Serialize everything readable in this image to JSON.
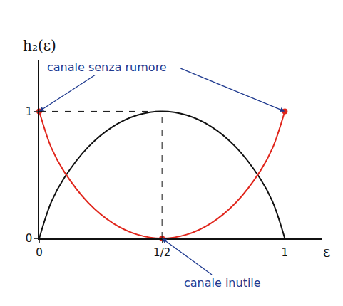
{
  "chart_data": {
    "type": "line",
    "y_label": "h₂(ε)",
    "x_label": "ε",
    "x": [
      0,
      0.05,
      0.1,
      0.2,
      0.3,
      0.4,
      0.5,
      0.6,
      0.7,
      0.8,
      0.9,
      0.95,
      1
    ],
    "series": [
      {
        "color": "#111111",
        "values": [
          0,
          0.29,
          0.47,
          0.72,
          0.88,
          0.97,
          1,
          0.97,
          0.88,
          0.72,
          0.47,
          0.29,
          0
        ]
      },
      {
        "color": "#e0261c",
        "values": [
          1,
          0.71,
          0.53,
          0.28,
          0.12,
          0.03,
          0,
          0.03,
          0.12,
          0.28,
          0.53,
          0.71,
          1
        ]
      }
    ],
    "annotations": [
      "canale senza rumore",
      "canale inutile"
    ],
    "xlim": [
      0,
      1.15
    ],
    "ylim": [
      0,
      1.4
    ],
    "xticks": [
      0,
      {
        "value": 0.5,
        "label": "1/2"
      },
      1
    ],
    "yticks": [
      0,
      1
    ],
    "grid": false
  }
}
